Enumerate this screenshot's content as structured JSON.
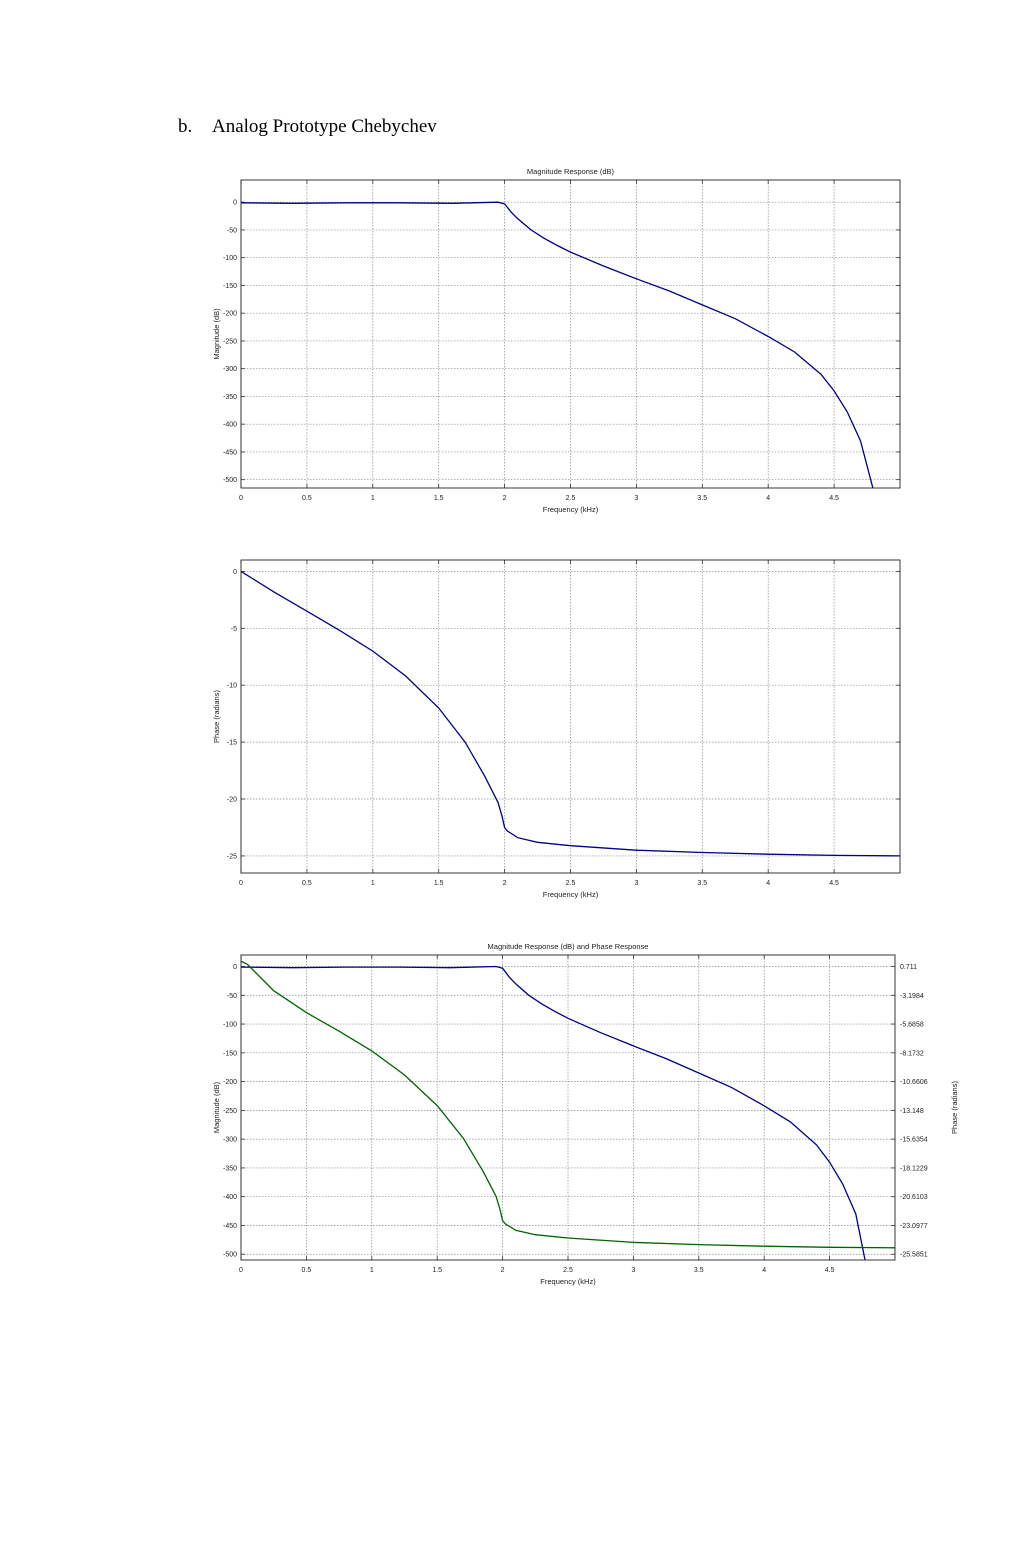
{
  "heading": {
    "number": "b.",
    "text": "Analog Prototype Chebychev"
  },
  "colors": {
    "magnitude": "#00008B",
    "phase": "#006400",
    "grid": "#888888"
  },
  "chart_data": [
    {
      "type": "line",
      "title": "Magnitude Response (dB)",
      "xlabel": "Frequency (kHz)",
      "ylabel": "Magnitude (dB)",
      "xlim": [
        0,
        5
      ],
      "ylim": [
        -515,
        40
      ],
      "xticks": [
        0,
        0.5,
        1,
        1.5,
        2,
        2.5,
        3,
        3.5,
        4,
        4.5
      ],
      "yticks": [
        0,
        -50,
        -100,
        -150,
        -200,
        -250,
        -300,
        -350,
        -400,
        -450,
        -500
      ],
      "grid": true,
      "series": [
        {
          "x": [
            0,
            0.4,
            0.8,
            1.2,
            1.6,
            1.95,
            2.0,
            2.05,
            2.1,
            2.2,
            2.3,
            2.4,
            2.5,
            2.75,
            3.0,
            3.25,
            3.5,
            3.75,
            4.0,
            4.2,
            4.4,
            4.5,
            4.6,
            4.7,
            4.8
          ],
          "y": [
            -1,
            -2,
            -1,
            -1,
            -2,
            0,
            -3,
            -18,
            -30,
            -50,
            -65,
            -78,
            -90,
            -115,
            -138,
            -160,
            -185,
            -210,
            -242,
            -270,
            -310,
            -340,
            -378,
            -430,
            -520
          ]
        }
      ]
    },
    {
      "type": "line",
      "title": "",
      "xlabel": "Frequency (kHz)",
      "ylabel": "Phase (radians)",
      "xlim": [
        0,
        5
      ],
      "ylim": [
        -26.5,
        1
      ],
      "xticks": [
        0,
        0.5,
        1,
        1.5,
        2,
        2.5,
        3,
        3.5,
        4,
        4.5
      ],
      "yticks": [
        0,
        -5,
        -10,
        -15,
        -20,
        -25
      ],
      "grid": true,
      "series": [
        {
          "x": [
            0,
            0.25,
            0.5,
            0.75,
            1.0,
            1.25,
            1.5,
            1.7,
            1.85,
            1.95,
            1.98,
            2.0,
            2.02,
            2.1,
            2.25,
            2.5,
            3.0,
            3.5,
            4.0,
            4.5,
            5.0
          ],
          "y": [
            0,
            -1.8,
            -3.5,
            -5.2,
            -7.0,
            -9.2,
            -12.0,
            -15.0,
            -18.0,
            -20.3,
            -21.5,
            -22.5,
            -22.8,
            -23.4,
            -23.8,
            -24.1,
            -24.5,
            -24.7,
            -24.85,
            -24.95,
            -25.0
          ]
        }
      ]
    },
    {
      "type": "line",
      "title": "Magnitude Response (dB) and Phase Response",
      "xlabel": "Frequency (kHz)",
      "ylabel": "Magnitude (dB)",
      "y2label": "Phase (radians)",
      "xlim": [
        0,
        5
      ],
      "ylim": [
        -510,
        20
      ],
      "y2ticks": [
        "0.711",
        "-3.1984",
        "-5.6858",
        "-8.1732",
        "-10.6606",
        "-13.148",
        "-15.6354",
        "-18.1229",
        "-20.6103",
        "-23.0977",
        "-25.5851"
      ],
      "xticks": [
        0,
        0.5,
        1,
        1.5,
        2,
        2.5,
        3,
        3.5,
        4,
        4.5
      ],
      "yticks": [
        0,
        -50,
        -100,
        -150,
        -200,
        -250,
        -300,
        -350,
        -400,
        -450,
        -500
      ],
      "grid": true,
      "series": [
        {
          "x": [
            0,
            0.4,
            0.8,
            1.2,
            1.6,
            1.95,
            2.0,
            2.05,
            2.1,
            2.2,
            2.3,
            2.4,
            2.5,
            2.75,
            3.0,
            3.25,
            3.5,
            3.75,
            4.0,
            4.2,
            4.4,
            4.5,
            4.6,
            4.7,
            4.78
          ],
          "y": [
            -1,
            -2,
            -1,
            -1,
            -2,
            0,
            -3,
            -18,
            -30,
            -50,
            -65,
            -78,
            -90,
            -115,
            -138,
            -160,
            -185,
            -210,
            -242,
            -270,
            -310,
            -340,
            -378,
            -430,
            -520
          ]
        },
        {
          "x": [
            0,
            0.05,
            0.25,
            0.5,
            0.75,
            1.0,
            1.25,
            1.5,
            1.7,
            1.85,
            1.95,
            1.98,
            2.0,
            2.02,
            2.1,
            2.25,
            2.5,
            3.0,
            3.5,
            4.0,
            4.5,
            5.0
          ],
          "y": [
            1.2,
            0.9,
            -1.5,
            -3.5,
            -5.2,
            -7.0,
            -9.2,
            -12.0,
            -15.0,
            -18.0,
            -20.3,
            -21.5,
            -22.5,
            -22.8,
            -23.4,
            -23.8,
            -24.1,
            -24.5,
            -24.7,
            -24.85,
            -24.95,
            -25.0
          ]
        }
      ]
    }
  ]
}
